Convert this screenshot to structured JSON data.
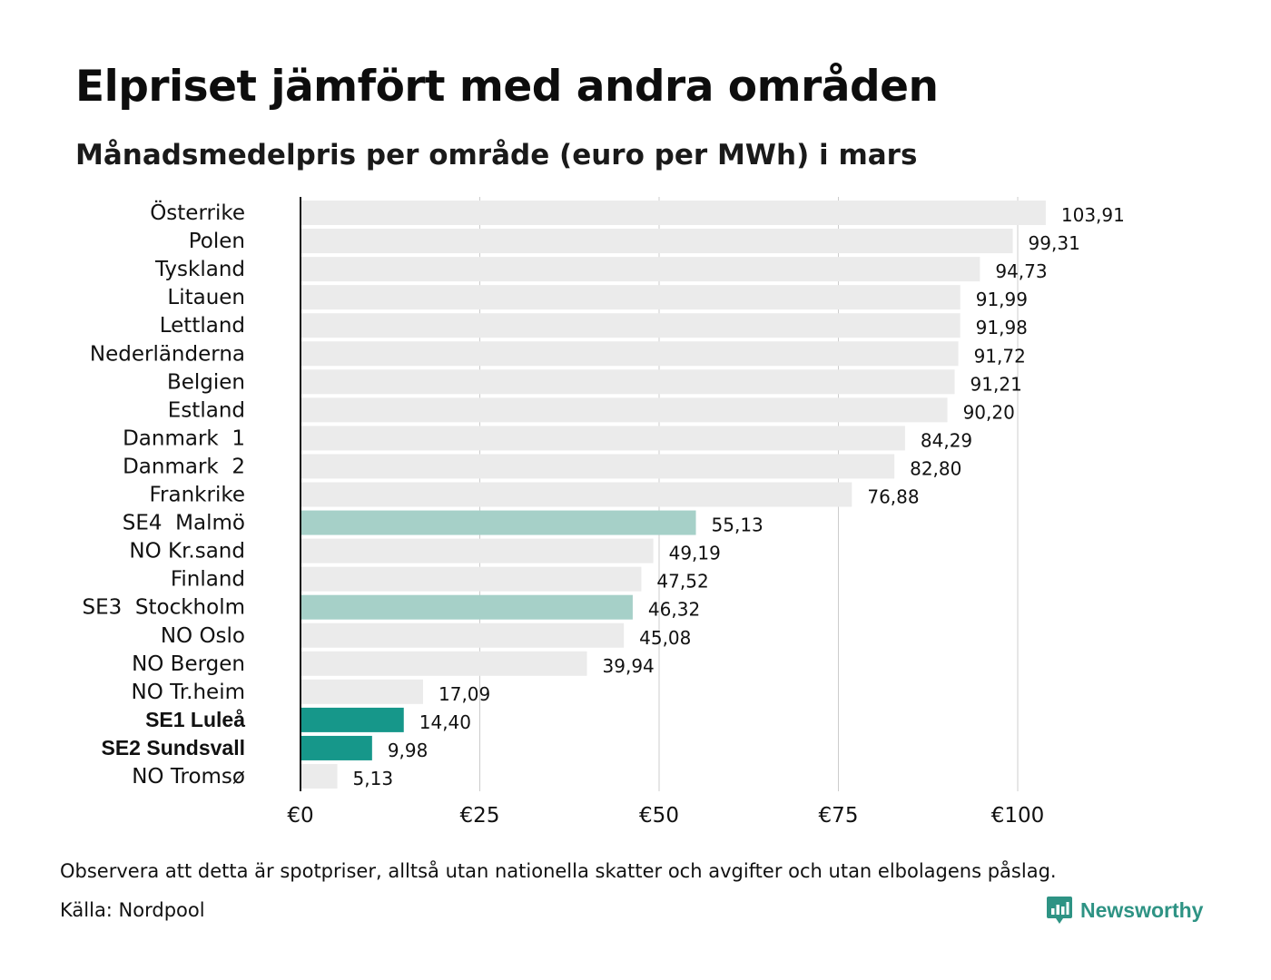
{
  "title": "Elpriset jämfört med andra områden",
  "subtitle": "Månadsmedelpris per område (euro per MWh) i mars",
  "footer": {
    "note": "Observera att detta är spotpriser, alltså utan nationella skatter och avgifter och utan elbolagens påslag.",
    "source": "Källa: Nordpool",
    "brand": "Newsworthy",
    "brand_icon": "bar-chart-speech-bubble-icon"
  },
  "colors": {
    "default_bar": "#ebebeb",
    "highlight_bar": "#a6d0c8",
    "emphasis_bar": "#16978a",
    "gridline": "#cccccc",
    "axis": "#111111",
    "brand": "#2e9384"
  },
  "chart_data": {
    "type": "bar",
    "orientation": "horizontal",
    "categories": [
      "Österrike",
      "Polen",
      "Tyskland",
      "Litauen",
      "Lettland",
      "Nederländerna",
      "Belgien",
      "Estland",
      "Danmark  1",
      "Danmark  2",
      "Frankrike",
      "SE4  Malmö",
      "NO Kr.sand",
      "Finland",
      "SE3  Stockholm",
      "NO Oslo",
      "NO Bergen",
      "NO Tr.heim",
      "SE1 Luleå",
      "SE2 Sundsvall",
      "NO Tromsø"
    ],
    "values": [
      103.91,
      99.31,
      94.73,
      91.99,
      91.98,
      91.72,
      91.21,
      90.2,
      84.29,
      82.8,
      76.88,
      55.13,
      49.19,
      47.52,
      46.32,
      45.08,
      39.94,
      17.09,
      14.4,
      9.98,
      5.13
    ],
    "value_labels": [
      "103,91",
      "99,31",
      "94,73",
      "91,99",
      "91,98",
      "91,72",
      "91,21",
      "90,20",
      "84,29",
      "82,80",
      "76,88",
      "55,13",
      "49,19",
      "47,52",
      "46,32",
      "45,08",
      "39,94",
      "17,09",
      "14,40",
      "9,98",
      "5,13"
    ],
    "highlight": [
      "default",
      "default",
      "default",
      "default",
      "default",
      "default",
      "default",
      "default",
      "default",
      "default",
      "default",
      "highlight",
      "default",
      "default",
      "highlight",
      "default",
      "default",
      "default",
      "emphasis",
      "emphasis",
      "default"
    ],
    "bold_labels": [
      "SE1 Luleå",
      "SE2 Sundsvall"
    ],
    "xlim": [
      0,
      105
    ],
    "xticks": [
      0,
      25,
      50,
      75,
      100
    ],
    "xtick_labels": [
      "€0",
      "€25",
      "€50",
      "€75",
      "€100"
    ],
    "grid": true,
    "legend": "none"
  }
}
